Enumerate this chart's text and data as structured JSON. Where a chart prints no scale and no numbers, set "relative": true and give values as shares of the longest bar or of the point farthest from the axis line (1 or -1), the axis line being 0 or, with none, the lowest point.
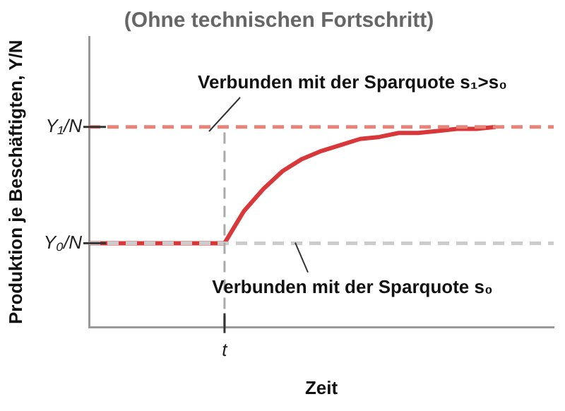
{
  "chart_data": {
    "type": "line",
    "relative": true,
    "title": "(Ohne technischen Fortschritt)",
    "xlabel": "Zeit",
    "ylabel": "Produktion je Beschäftigten, Y/N",
    "categories": [
      null,
      null,
      null,
      null,
      null,
      null,
      null,
      null,
      null,
      null,
      null,
      null,
      null,
      null,
      null,
      null,
      null,
      null,
      null,
      null,
      null,
      null,
      null,
      null,
      null
    ],
    "series": [
      {
        "color": "#d9383a",
        "values": [
          0.42,
          0.42,
          0.42,
          0.42,
          0.42,
          0.42,
          0.42,
          0.42,
          0.58,
          0.69,
          0.78,
          0.84,
          0.88,
          0.91,
          0.94,
          0.95,
          0.97,
          0.97,
          0.98,
          0.99,
          0.99,
          1,
          null,
          null,
          null
        ]
      }
    ],
    "ref_lines": [
      {
        "axis": "y",
        "value": 1,
        "label": "Y₁/N",
        "color": "#e8837a",
        "line_style": "dashed"
      },
      {
        "axis": "y",
        "value": 0.42,
        "label": "Y₀/N",
        "color": "#cccccc",
        "line_style": "dashed"
      }
    ],
    "annotations": [
      "Verbunden mit der Sparquote s₁>s₀",
      "Verbunden mit der Sparquote s₀",
      "t"
    ],
    "grid": false,
    "legend": false,
    "marker": "none",
    "line_style": "solid"
  }
}
